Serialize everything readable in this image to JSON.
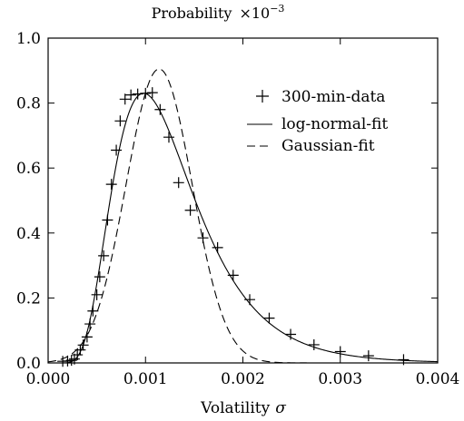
{
  "chart_data": {
    "type": "line",
    "title": "Probability",
    "title_scale": "×10",
    "title_scale_exp": "−3",
    "xlabel": "Volatility",
    "xlabel_symbol": "σ",
    "ylabel": "",
    "xlim": [
      0.0,
      0.004
    ],
    "ylim": [
      0.0,
      1.0
    ],
    "x_ticks": [
      0.0,
      0.001,
      0.002,
      0.003,
      0.004
    ],
    "x_tick_labels": [
      "0.000",
      "0.001",
      "0.002",
      "0.003",
      "0.004"
    ],
    "y_ticks": [
      0.0,
      0.2,
      0.4,
      0.6,
      0.8,
      1.0
    ],
    "y_tick_labels": [
      "0.0",
      "0.2",
      "0.4",
      "0.6",
      "0.8",
      "1.0"
    ],
    "grid": false,
    "legend_position": "top-right",
    "series": [
      {
        "name": "300-min-data",
        "style": "markers-plus",
        "x": [
          0.00015,
          0.0002,
          0.00024,
          0.00027,
          0.0003,
          0.00033,
          0.00036,
          0.0004,
          0.00043,
          0.00046,
          0.0005,
          0.00053,
          0.00057,
          0.00061,
          0.00065,
          0.0007,
          0.00074,
          0.00079,
          0.00085,
          0.00092,
          0.001,
          0.00107,
          0.00115,
          0.00124,
          0.00134,
          0.00146,
          0.00159,
          0.00174,
          0.0019,
          0.00207,
          0.00227,
          0.00249,
          0.00273,
          0.003,
          0.00329,
          0.00365
        ],
        "values": [
          0.005,
          0.006,
          0.008,
          0.012,
          0.025,
          0.04,
          0.055,
          0.08,
          0.12,
          0.16,
          0.21,
          0.265,
          0.33,
          0.44,
          0.55,
          0.655,
          0.745,
          0.812,
          0.825,
          0.828,
          0.83,
          0.832,
          0.78,
          0.695,
          0.555,
          0.47,
          0.385,
          0.355,
          0.27,
          0.195,
          0.138,
          0.088,
          0.056,
          0.035,
          0.022,
          0.01
        ]
      },
      {
        "name": "log-normal-fit",
        "style": "solid",
        "distribution": "log-normal",
        "peak_x": 0.00098,
        "peak_y": 0.83
      },
      {
        "name": "Gaussian-fit",
        "style": "dashed",
        "distribution": "gaussian",
        "peak_x": 0.00114,
        "peak_y": 0.905
      }
    ]
  }
}
